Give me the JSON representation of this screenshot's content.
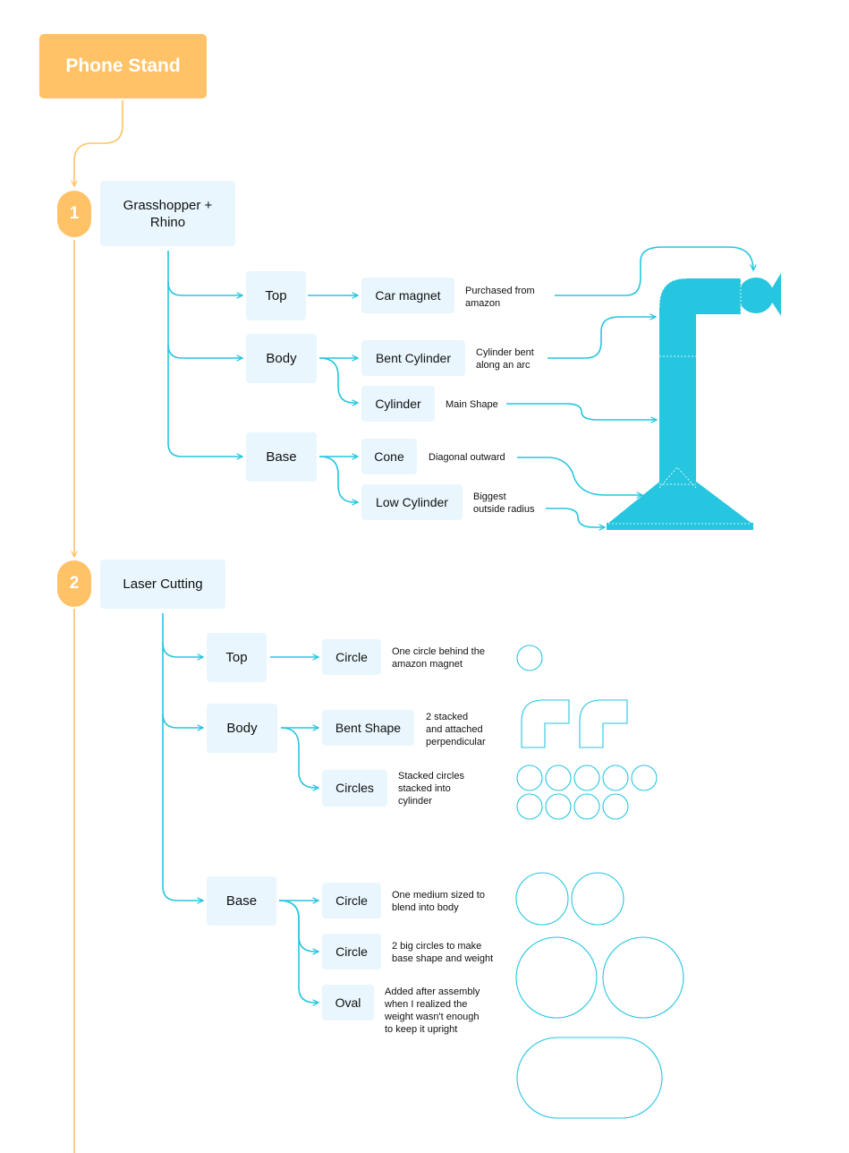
{
  "title": "Phone Stand",
  "colors": {
    "accent": "#26c6e0",
    "step": "#ffc266",
    "node_bg": "#e9f6fd",
    "connector": "#ffc266"
  },
  "sections": [
    {
      "number": "1",
      "label": "Grasshopper +\nRhino",
      "groups": [
        {
          "label": "Top",
          "items": [
            {
              "label": "Car magnet",
              "note": "Purchased from\namazon"
            }
          ]
        },
        {
          "label": "Body",
          "items": [
            {
              "label": "Bent Cylinder",
              "note": "Cylinder bent\nalong an arc"
            },
            {
              "label": "Cylinder",
              "note": "Main Shape"
            }
          ]
        },
        {
          "label": "Base",
          "items": [
            {
              "label": "Cone",
              "note": "Diagonal outward"
            },
            {
              "label": "Low Cylinder",
              "note": "Biggest\noutside radius"
            }
          ]
        }
      ]
    },
    {
      "number": "2",
      "label": "Laser Cutting",
      "groups": [
        {
          "label": "Top",
          "items": [
            {
              "label": "Circle",
              "note": "One circle behind the\namazon magnet"
            }
          ]
        },
        {
          "label": "Body",
          "items": [
            {
              "label": "Bent Shape",
              "note": "2 stacked\nand attached\nperpendicular"
            },
            {
              "label": "Circles",
              "note": "Stacked circles\nstacked into\ncylinder"
            }
          ]
        },
        {
          "label": "Base",
          "items": [
            {
              "label": "Circle",
              "note": "One medium sized to\nblend into body"
            },
            {
              "label": "Circle",
              "note": "2 big circles to make\nbase shape and weight"
            },
            {
              "label": "Oval",
              "note": "Added after assembly\nwhen I realized the\nweight wasn't enough\nto keep it upright"
            }
          ]
        }
      ]
    }
  ]
}
